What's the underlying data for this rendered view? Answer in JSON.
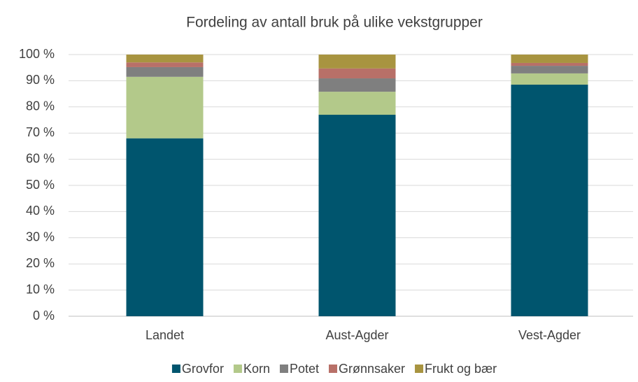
{
  "chart_data": {
    "type": "stacked_bar",
    "title": "Fordeling av antall bruk på ulike vekstgrupper",
    "categories": [
      "Landet",
      "Aust-Agder",
      "Vest-Agder"
    ],
    "series": [
      {
        "name": "Grovfor",
        "color": "#00556e",
        "values": [
          68,
          77,
          88.5
        ]
      },
      {
        "name": "Korn",
        "color": "#b3c98a",
        "values": [
          23.5,
          8.8,
          4.3
        ]
      },
      {
        "name": "Potet",
        "color": "#7f7f7f",
        "values": [
          3.7,
          5.1,
          2.9
        ]
      },
      {
        "name": "Grønnsaker",
        "color": "#b87068",
        "values": [
          1.8,
          3.8,
          1.1
        ]
      },
      {
        "name": "Frukt og bær",
        "color": "#a89440",
        "values": [
          3.0,
          5.3,
          3.2
        ]
      }
    ],
    "ylim": [
      0,
      100
    ],
    "yticks": [
      {
        "value": 0,
        "label": "0 %"
      },
      {
        "value": 10,
        "label": "10 %"
      },
      {
        "value": 20,
        "label": "20 %"
      },
      {
        "value": 30,
        "label": "30 %"
      },
      {
        "value": 40,
        "label": "40 %"
      },
      {
        "value": 50,
        "label": "50 %"
      },
      {
        "value": 60,
        "label": "60 %"
      },
      {
        "value": 70,
        "label": "70 %"
      },
      {
        "value": 80,
        "label": "80 %"
      },
      {
        "value": 90,
        "label": "90 %"
      },
      {
        "value": 100,
        "label": "100 %"
      }
    ],
    "grid": true,
    "legend": "bottom"
  }
}
